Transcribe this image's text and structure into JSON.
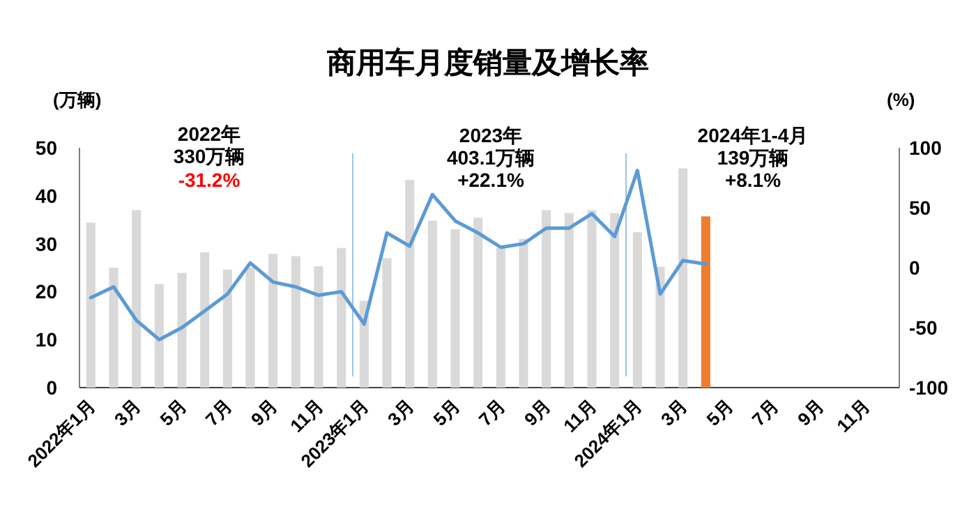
{
  "chart_data": {
    "type": "bar",
    "title": "商用车月度销量及增长率",
    "ylabel": "(万辆)",
    "y2label": "(%)",
    "categories": [
      "2022年1月",
      null,
      "3月",
      null,
      "5月",
      null,
      "7月",
      null,
      "9月",
      null,
      "11月",
      null,
      "2023年1月",
      null,
      "3月",
      null,
      "5月",
      null,
      "7月",
      null,
      "9月",
      null,
      "11月",
      null,
      "2024年1月",
      null,
      "3月",
      null,
      "5月",
      null,
      "7月",
      null,
      "9月",
      null,
      "11月",
      null
    ],
    "series": [
      {
        "colors": [
          "#d9d9d9",
          "#d9d9d9",
          "#d9d9d9",
          "#d9d9d9",
          "#d9d9d9",
          "#d9d9d9",
          "#d9d9d9",
          "#d9d9d9",
          "#d9d9d9",
          "#d9d9d9",
          "#d9d9d9",
          "#d9d9d9",
          "#d9d9d9",
          "#d9d9d9",
          "#d9d9d9",
          "#d9d9d9",
          "#d9d9d9",
          "#d9d9d9",
          "#d9d9d9",
          "#d9d9d9",
          "#d9d9d9",
          "#d9d9d9",
          "#d9d9d9",
          "#d9d9d9",
          "#d9d9d9",
          "#d9d9d9",
          "#d9d9d9",
          "#ed7d31",
          null,
          null,
          null,
          null,
          null,
          null,
          null,
          null
        ],
        "values": [
          34.4,
          25.0,
          37.0,
          21.6,
          23.9,
          28.2,
          24.6,
          25.0,
          27.9,
          27.4,
          25.3,
          29.1,
          18.1,
          27,
          43.3,
          34.8,
          33,
          35.4,
          29.1,
          31,
          37,
          36.4,
          37,
          36.4,
          32.4,
          25.2,
          45.7,
          35.7,
          null,
          null,
          null,
          null,
          null,
          null,
          null,
          null
        ]
      },
      {
        "type": "line",
        "axis": "y2",
        "color": "#5b9bd5",
        "values": [
          -25,
          -16,
          -44,
          -60,
          -50,
          -36,
          -22,
          4,
          -12,
          -16,
          -23,
          -20,
          -47,
          29,
          18,
          61,
          39,
          29,
          17,
          20,
          33,
          33,
          45,
          26,
          81,
          -22,
          6,
          3,
          null,
          null,
          null,
          null,
          null,
          null,
          null,
          null
        ]
      }
    ],
    "ylim": [
      0,
      50
    ],
    "yticks": [
      0,
      10,
      20,
      30,
      40,
      50
    ],
    "y2lim": [
      -100,
      100
    ],
    "y2ticks": [
      -100,
      -50,
      0,
      50,
      100
    ],
    "annotations": [
      "2022年\n330万辆",
      "-31.2%",
      "2023年\n403.1万辆\n+22.1%",
      "2024年1-4月\n139万辆\n+8.1%"
    ],
    "grid": false
  }
}
